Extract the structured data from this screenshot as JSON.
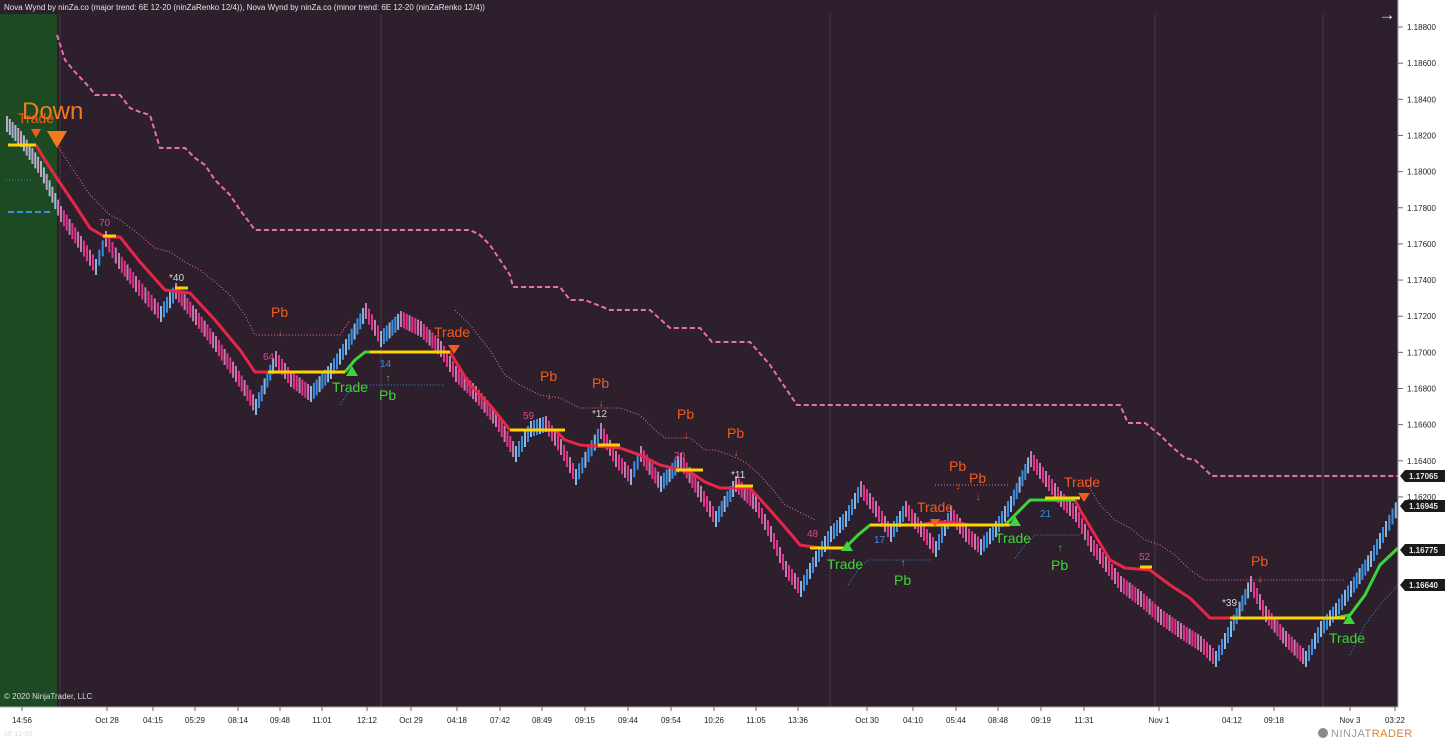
{
  "header": {
    "indicators": "Nova Wynd by ninZa.co (major trend: 6E 12-20 (ninZaRenko 12/4)), Nova Wynd by ninZa.co (minor trend: 6E 12-20 (ninZaRenko 12/4))"
  },
  "copyright": "© 2020 NinjaTrader, LLC",
  "instrument": "6E 12-20",
  "brand": {
    "name": "NINJA",
    "accent": "TRADER"
  },
  "price_axis": {
    "ticks": [
      "1.18800",
      "1.18600",
      "1.18400",
      "1.18200",
      "1.18000",
      "1.17800",
      "1.17600",
      "1.17400",
      "1.17200",
      "1.17000",
      "1.16800",
      "1.16600",
      "1.16400",
      "1.16200"
    ],
    "badges": [
      {
        "label": "1.17065",
        "color": "#e8e8e8"
      },
      {
        "label": "1.16945",
        "color": "#e8e8e8"
      },
      {
        "label": "1.16775",
        "color": "#e8e8e8"
      },
      {
        "label": "1.16640",
        "color": "#e8e8e8"
      }
    ]
  },
  "time_axis": {
    "ticks": [
      "14:56",
      "Oct 28",
      "04:15",
      "05:29",
      "08:14",
      "09:48",
      "11:01",
      "12:12",
      "Oct 29",
      "04:18",
      "07:42",
      "08:49",
      "09:15",
      "09:44",
      "09:54",
      "10:26",
      "11:05",
      "13:36",
      "Oct 30",
      "04:10",
      "05:44",
      "08:48",
      "09:19",
      "11:31",
      "Nov 1",
      "04:12",
      "09:18",
      "Nov 3",
      "03:22"
    ]
  },
  "annotations": {
    "direction": "Down",
    "trade": "Trade",
    "pb": "Pb",
    "counts": [
      "70",
      "*40",
      "64",
      "14",
      "59",
      "*12",
      "20",
      "*11",
      "48",
      "17",
      "21",
      "52",
      "*39"
    ]
  },
  "colors": {
    "background": "#2d1f2b",
    "down_line": "#e8264a",
    "up_line": "#3fd53a",
    "major_trend": "#e96fb0",
    "level": "#ffd200",
    "trade_label_down": "#f45a1e",
    "trade_label_up": "#3fd53a",
    "pb_label": "#f45a1e",
    "green_zone": "#1c4a22"
  },
  "icons": {
    "expand": "arrow-right-icon"
  }
}
